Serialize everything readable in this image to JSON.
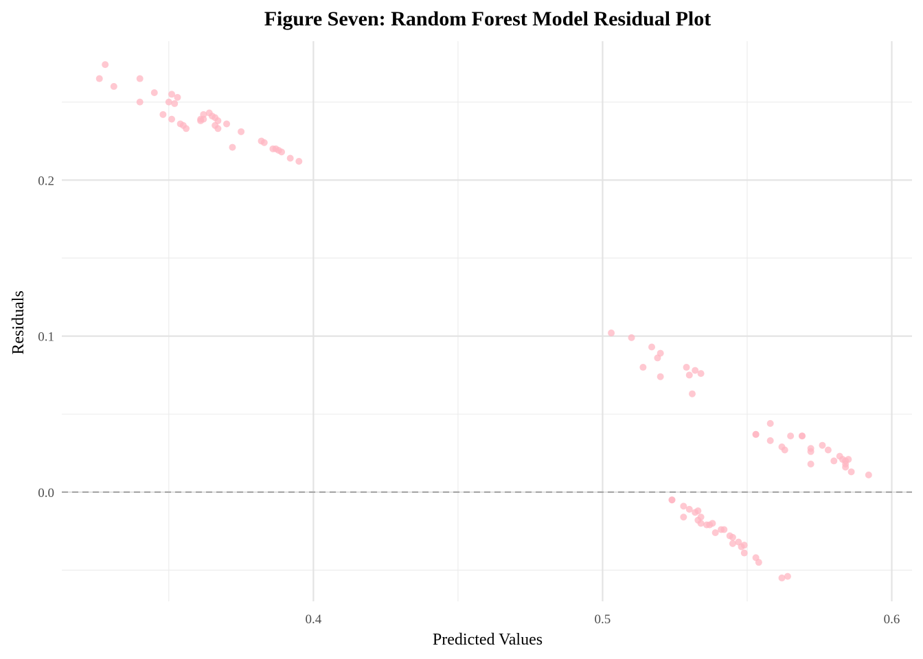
{
  "chart_data": {
    "type": "scatter",
    "title": "Figure Seven: Random Forest Model Residual Plot",
    "xlabel": "Predicted Values",
    "ylabel": "Residuals",
    "xlim": [
      0.313,
      0.607
    ],
    "ylim": [
      -0.07,
      0.289
    ],
    "x_ticks": [
      0.4,
      0.5,
      0.6
    ],
    "x_tick_labels": [
      "0.4",
      "0.5",
      "0.6"
    ],
    "x_minor_ticks": [
      0.35,
      0.45,
      0.55
    ],
    "y_ticks": [
      0.0,
      0.1,
      0.2
    ],
    "y_tick_labels": [
      "0.0",
      "0.1",
      "0.2"
    ],
    "y_minor_ticks": [
      -0.05,
      0.05,
      0.15,
      0.25
    ],
    "grid": true,
    "legend": "none",
    "point_color": "#ffb6c1",
    "reference_line": {
      "y": 0,
      "style": "dashed",
      "color": "#a9a9a9"
    },
    "points": [
      [
        0.326,
        0.265
      ],
      [
        0.328,
        0.274
      ],
      [
        0.331,
        0.26
      ],
      [
        0.34,
        0.265
      ],
      [
        0.345,
        0.256
      ],
      [
        0.34,
        0.25
      ],
      [
        0.348,
        0.242
      ],
      [
        0.35,
        0.25
      ],
      [
        0.351,
        0.255
      ],
      [
        0.352,
        0.249
      ],
      [
        0.353,
        0.253
      ],
      [
        0.351,
        0.239
      ],
      [
        0.354,
        0.236
      ],
      [
        0.355,
        0.235
      ],
      [
        0.356,
        0.233
      ],
      [
        0.361,
        0.238
      ],
      [
        0.362,
        0.242
      ],
      [
        0.362,
        0.239
      ],
      [
        0.361,
        0.239
      ],
      [
        0.364,
        0.243
      ],
      [
        0.365,
        0.241
      ],
      [
        0.366,
        0.24
      ],
      [
        0.367,
        0.238
      ],
      [
        0.366,
        0.235
      ],
      [
        0.367,
        0.233
      ],
      [
        0.37,
        0.236
      ],
      [
        0.372,
        0.221
      ],
      [
        0.375,
        0.231
      ],
      [
        0.382,
        0.225
      ],
      [
        0.383,
        0.224
      ],
      [
        0.386,
        0.22
      ],
      [
        0.387,
        0.22
      ],
      [
        0.388,
        0.219
      ],
      [
        0.389,
        0.218
      ],
      [
        0.392,
        0.214
      ],
      [
        0.395,
        0.212
      ],
      [
        0.503,
        0.102
      ],
      [
        0.51,
        0.099
      ],
      [
        0.517,
        0.093
      ],
      [
        0.52,
        0.089
      ],
      [
        0.519,
        0.086
      ],
      [
        0.514,
        0.08
      ],
      [
        0.52,
        0.074
      ],
      [
        0.529,
        0.08
      ],
      [
        0.53,
        0.075
      ],
      [
        0.532,
        0.078
      ],
      [
        0.534,
        0.076
      ],
      [
        0.531,
        0.063
      ],
      [
        0.553,
        0.037
      ],
      [
        0.553,
        0.037
      ],
      [
        0.558,
        0.044
      ],
      [
        0.558,
        0.033
      ],
      [
        0.562,
        0.029
      ],
      [
        0.563,
        0.027
      ],
      [
        0.565,
        0.036
      ],
      [
        0.569,
        0.036
      ],
      [
        0.569,
        0.036
      ],
      [
        0.572,
        0.028
      ],
      [
        0.572,
        0.026
      ],
      [
        0.576,
        0.03
      ],
      [
        0.578,
        0.027
      ],
      [
        0.572,
        0.018
      ],
      [
        0.58,
        0.02
      ],
      [
        0.582,
        0.023
      ],
      [
        0.583,
        0.021
      ],
      [
        0.584,
        0.02
      ],
      [
        0.585,
        0.021
      ],
      [
        0.584,
        0.018
      ],
      [
        0.584,
        0.016
      ],
      [
        0.586,
        0.013
      ],
      [
        0.592,
        0.011
      ],
      [
        0.524,
        -0.005
      ],
      [
        0.524,
        -0.005
      ],
      [
        0.528,
        -0.009
      ],
      [
        0.53,
        -0.011
      ],
      [
        0.532,
        -0.013
      ],
      [
        0.533,
        -0.012
      ],
      [
        0.528,
        -0.016
      ],
      [
        0.534,
        -0.016
      ],
      [
        0.533,
        -0.018
      ],
      [
        0.534,
        -0.02
      ],
      [
        0.536,
        -0.021
      ],
      [
        0.537,
        -0.021
      ],
      [
        0.538,
        -0.02
      ],
      [
        0.539,
        -0.026
      ],
      [
        0.541,
        -0.024
      ],
      [
        0.542,
        -0.024
      ],
      [
        0.544,
        -0.028
      ],
      [
        0.545,
        -0.029
      ],
      [
        0.545,
        -0.033
      ],
      [
        0.547,
        -0.032
      ],
      [
        0.548,
        -0.035
      ],
      [
        0.549,
        -0.034
      ],
      [
        0.549,
        -0.039
      ],
      [
        0.553,
        -0.042
      ],
      [
        0.554,
        -0.045
      ],
      [
        0.562,
        -0.055
      ],
      [
        0.564,
        -0.054
      ]
    ]
  }
}
